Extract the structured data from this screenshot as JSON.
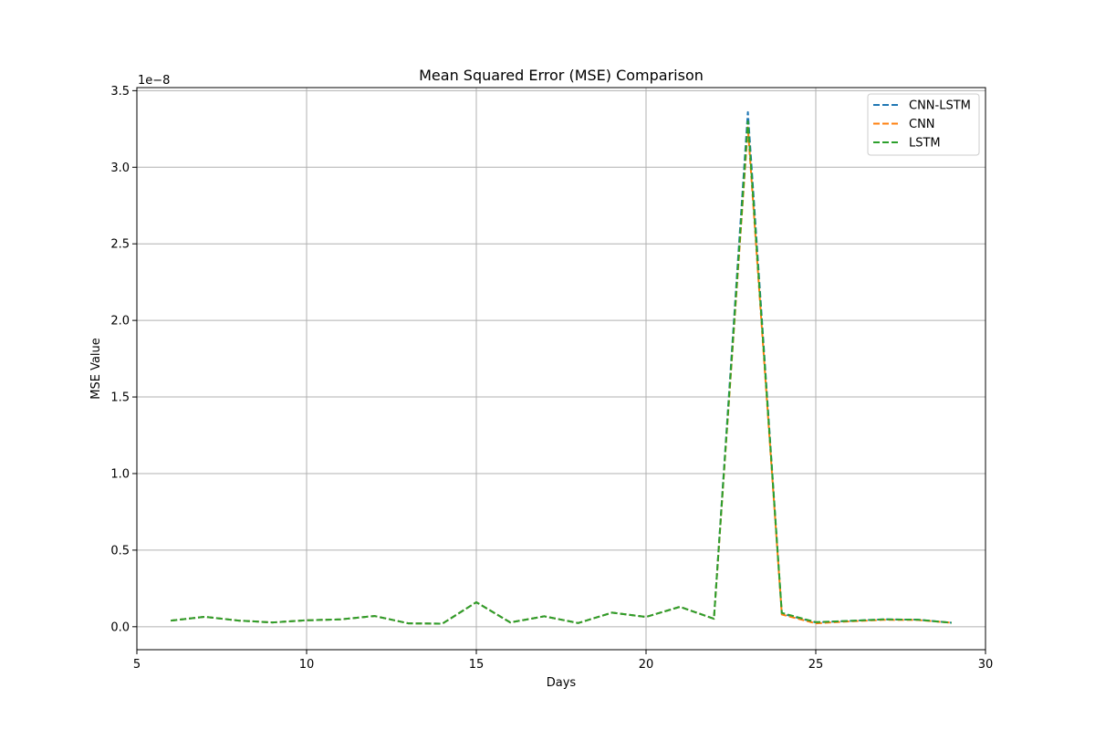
{
  "chart_data": {
    "type": "line",
    "title": "Mean Squared Error (MSE) Comparison",
    "xlabel": "Days",
    "ylabel": "MSE Value",
    "y_offset_text": "1e−8",
    "xlim": [
      5,
      30
    ],
    "ylim": [
      -0.15,
      3.52
    ],
    "x_ticks": [
      5,
      10,
      15,
      20,
      25,
      30
    ],
    "y_ticks": [
      0.0,
      0.5,
      1.0,
      1.5,
      2.0,
      2.5,
      3.0,
      3.5
    ],
    "y_tick_labels": [
      "0.0",
      "0.5",
      "1.0",
      "1.5",
      "2.0",
      "2.5",
      "3.0",
      "3.5"
    ],
    "grid": true,
    "legend_position": "top-right",
    "x": [
      6,
      7,
      8,
      9,
      10,
      11,
      12,
      13,
      14,
      15,
      16,
      17,
      18,
      19,
      20,
      21,
      22,
      23,
      24,
      25,
      26,
      27,
      28,
      29
    ],
    "series": [
      {
        "name": "CNN-LSTM",
        "color": "#1f77b4",
        "values": [
          0.04,
          0.065,
          0.04,
          0.028,
          0.042,
          0.048,
          0.07,
          0.022,
          0.02,
          0.16,
          0.028,
          0.068,
          0.024,
          0.092,
          0.064,
          0.13,
          0.052,
          3.36,
          0.085,
          0.028,
          0.038,
          0.048,
          0.046,
          0.026
        ]
      },
      {
        "name": "CNN",
        "color": "#ff7f0e",
        "values": [
          0.04,
          0.065,
          0.04,
          0.028,
          0.042,
          0.048,
          0.07,
          0.022,
          0.02,
          0.16,
          0.028,
          0.068,
          0.024,
          0.092,
          0.064,
          0.13,
          0.052,
          3.26,
          0.08,
          0.022,
          0.035,
          0.045,
          0.044,
          0.026
        ]
      },
      {
        "name": "LSTM",
        "color": "#2ca02c",
        "values": [
          0.04,
          0.065,
          0.04,
          0.028,
          0.042,
          0.048,
          0.07,
          0.022,
          0.02,
          0.16,
          0.028,
          0.068,
          0.024,
          0.092,
          0.064,
          0.13,
          0.052,
          3.3,
          0.09,
          0.03,
          0.038,
          0.048,
          0.046,
          0.026
        ]
      }
    ]
  }
}
